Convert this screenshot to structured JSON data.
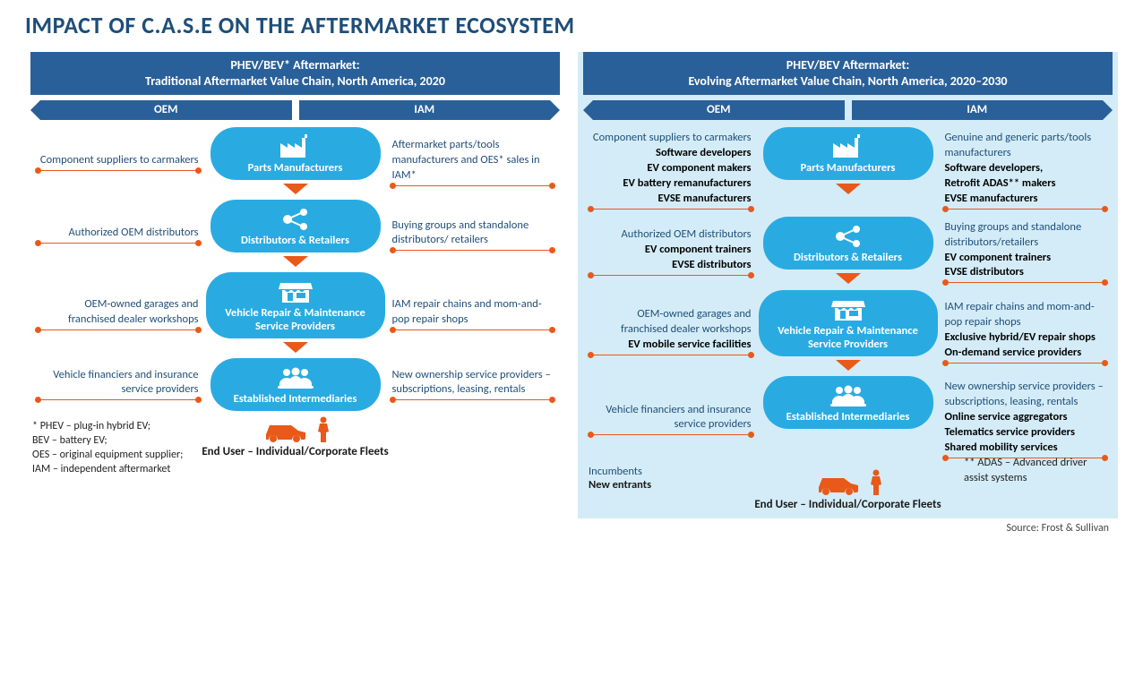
{
  "title": "IMPACT OF C.A.S.E ON THE AFTERMARKET ECOSYSTEM",
  "colors": {
    "heading": "#1f4e79",
    "headerBar": "#2a6099",
    "node": "#29abe2",
    "accent": "#e8591a",
    "rightBg": "#d4ecf7",
    "text": "#1a1a1a"
  },
  "left": {
    "header": "PHEV/BEV* Aftermarket:\nTraditional Aftermarket Value Chain, North America, 2020",
    "oem": "OEM",
    "iam": "IAM",
    "stages": [
      {
        "name": "Parts Manufacturers",
        "icon": "factory",
        "oem": {
          "norm": "Component suppliers to carmakers"
        },
        "iam": {
          "norm": "Aftermarket parts/tools manufacturers and OES* sales in IAM*"
        }
      },
      {
        "name": "Distributors & Retailers",
        "icon": "share",
        "oem": {
          "norm": "Authorized OEM distributors"
        },
        "iam": {
          "norm": "Buying groups and standalone distributors/ retailers"
        }
      },
      {
        "name": "Vehicle Repair & Maintenance Service Providers",
        "icon": "shop",
        "oem": {
          "norm": "OEM-owned garages and franchised dealer workshops"
        },
        "iam": {
          "norm": "IAM repair chains and mom-and-pop repair shops"
        }
      },
      {
        "name": "Established Intermediaries",
        "icon": "people",
        "oem": {
          "norm": "Vehicle financiers and insurance service providers"
        },
        "iam": {
          "norm": "New ownership service providers – subscriptions, leasing, rentals"
        }
      }
    ],
    "enduser": "End User – Individual/Corporate Fleets",
    "footnote": "* PHEV – plug-in hybrid EV;\nBEV – battery EV;\nOES – original equipment supplier;\nIAM – independent aftermarket"
  },
  "right": {
    "header": "PHEV/BEV Aftermarket:\nEvolving Aftermarket Value Chain, North America, 2020–2030",
    "oem": "OEM",
    "iam": "IAM",
    "stages": [
      {
        "name": "Parts Manufacturers",
        "icon": "factory",
        "oem": {
          "norm": "Component suppliers to carmakers",
          "bold": "Software developers\nEV component makers\nEV battery remanufacturers\nEVSE manufacturers"
        },
        "iam": {
          "norm": "Genuine and generic parts/tools manufacturers",
          "bold": "Software developers,\nRetrofit ADAS** makers\nEVSE manufacturers"
        }
      },
      {
        "name": "Distributors & Retailers",
        "icon": "share",
        "oem": {
          "norm": "Authorized OEM distributors",
          "bold": "EV component trainers\nEVSE distributors"
        },
        "iam": {
          "norm": "Buying groups and standalone distributors/retailers",
          "bold": "EV component trainers\nEVSE distributors"
        }
      },
      {
        "name": "Vehicle Repair & Maintenance Service Providers",
        "icon": "shop",
        "oem": {
          "norm": "OEM-owned garages and franchised dealer workshops",
          "bold": "EV mobile service facilities"
        },
        "iam": {
          "norm": "IAM repair chains and mom-and-pop repair shops",
          "bold": "Exclusive hybrid/EV repair shops\nOn-demand service providers"
        }
      },
      {
        "name": "Established Intermediaries",
        "icon": "people",
        "oem": {
          "norm": "Vehicle financiers and insurance service providers"
        },
        "iam": {
          "norm": "New ownership service providers – subscriptions, leasing, rentals",
          "bold": "Online service aggregators\nTelematics service providers\nShared mobility services"
        }
      }
    ],
    "enduser": "End User – Individual/Corporate Fleets",
    "incumbents": "Incumbents",
    "newEntrants": "New entrants",
    "adasNote": "** ADAS – Advanced driver assist systems"
  },
  "source": "Source: Frost & Sullivan"
}
